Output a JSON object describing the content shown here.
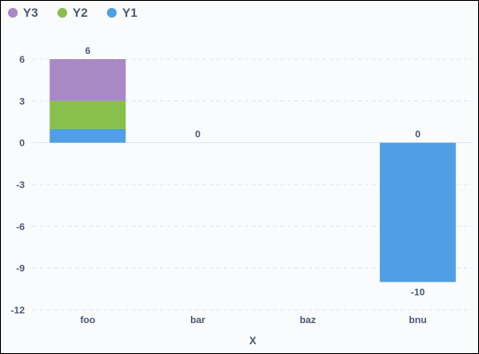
{
  "chart_data": {
    "type": "bar",
    "stacked": true,
    "categories": [
      "foo",
      "bar",
      "baz",
      "bnu"
    ],
    "series": [
      {
        "name": "Y1",
        "color": "#509ee3",
        "values": [
          1,
          0,
          0,
          -10
        ]
      },
      {
        "name": "Y2",
        "color": "#88bf4d",
        "values": [
          2,
          0,
          0,
          0
        ]
      },
      {
        "name": "Y3",
        "color": "#a989c5",
        "values": [
          3,
          0,
          0,
          0
        ]
      }
    ],
    "totals": [
      {
        "category": "foo",
        "text": "6"
      },
      {
        "category": "bar",
        "text": "0"
      },
      {
        "category": "bnu",
        "text": "0"
      },
      {
        "category": "bnu",
        "text": "-10",
        "below": true
      }
    ],
    "legend_order": [
      "Y3",
      "Y2",
      "Y1"
    ],
    "legend_position": "top-left",
    "xlabel": "X",
    "ylabel": "",
    "ylim": [
      -12,
      6
    ],
    "yticks": [
      6,
      3,
      0,
      -3,
      -6,
      -9,
      -12
    ],
    "grid": true
  }
}
